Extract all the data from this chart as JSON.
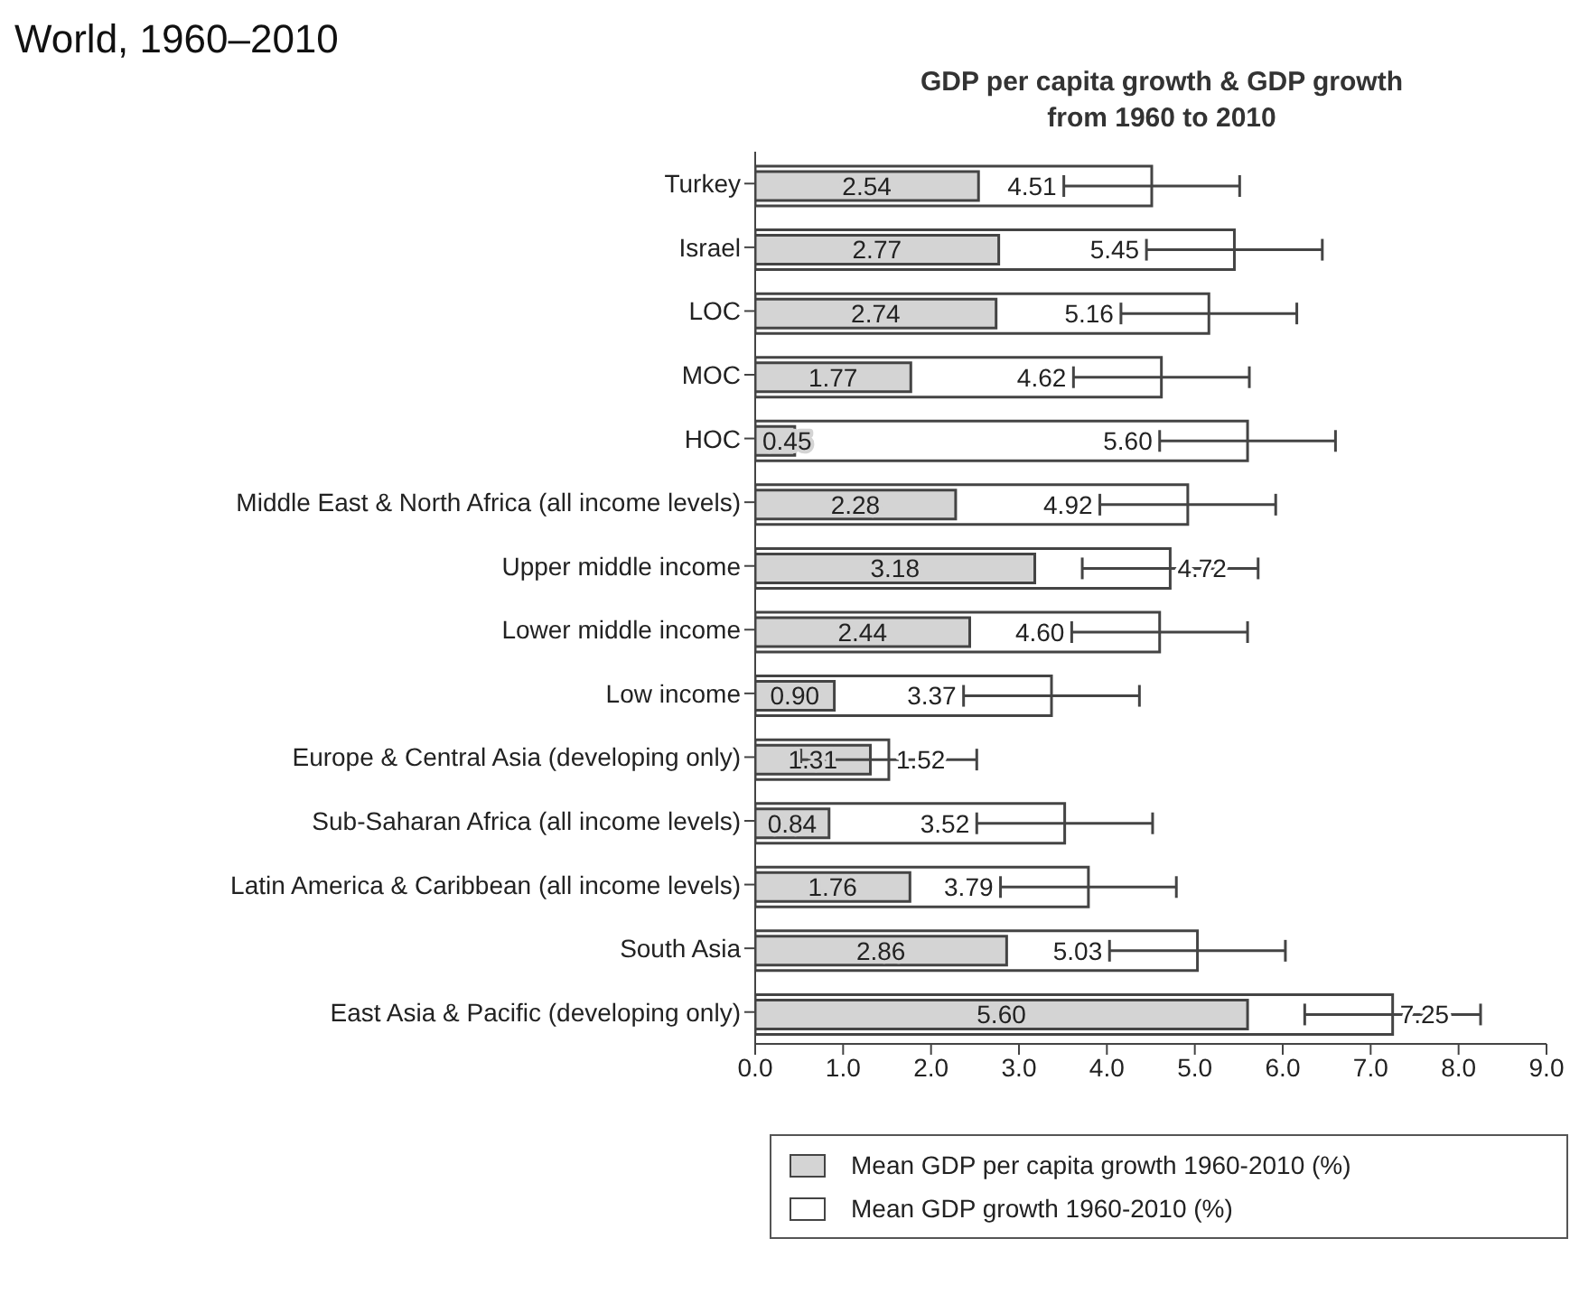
{
  "chart_data": {
    "type": "bar",
    "orientation": "horizontal",
    "title": "GDP per capita growth & GDP growth\nfrom 1960 to 2010",
    "annotations": [
      "World, 1960–2010"
    ],
    "categories": [
      "Turkey",
      "Israel",
      "LOC",
      "MOC",
      "HOC",
      "Middle East & North Africa (all income levels)",
      "Upper middle income",
      "Lower middle income",
      "Low income",
      "Europe & Central Asia (developing only)",
      "Sub-Saharan Africa (all income levels)",
      "Latin America & Caribbean (all income levels)",
      "South Asia",
      "East Asia & Pacific (developing only)"
    ],
    "series": [
      {
        "name": "Mean GDP growth 1960-2010 (%)",
        "color": "#ffffff",
        "values": [
          4.51,
          5.45,
          5.16,
          4.62,
          5.6,
          4.92,
          4.72,
          4.6,
          3.37,
          1.52,
          3.52,
          3.79,
          5.03,
          7.25
        ],
        "value_labels": [
          "4.51",
          "5.45",
          "5.16",
          "4.62",
          "5.60",
          "4.92",
          "4.72",
          "4.60",
          "3.37",
          "1.52",
          "3.52",
          "3.79",
          "5.03",
          "7.25"
        ],
        "errors": [
          1,
          1,
          1,
          1,
          1,
          1,
          1,
          1,
          1,
          1,
          1,
          1,
          1,
          1
        ]
      },
      {
        "name": "Mean GDP per capita growth 1960-2010 (%)",
        "color": "#d4d4d4",
        "values": [
          2.54,
          2.77,
          2.74,
          1.77,
          0.45,
          2.28,
          3.18,
          2.44,
          0.9,
          1.31,
          0.84,
          1.76,
          2.86,
          5.6
        ],
        "value_labels": [
          "2.54",
          "2.77",
          "2.74",
          "1.77",
          "0.45",
          "2.28",
          "3.18",
          "2.44",
          "0.90",
          "1.31",
          "0.84",
          "1.76",
          "2.86",
          "5.60"
        ]
      }
    ],
    "xlim": [
      0,
      9
    ],
    "xticks": [
      {
        "value": 0,
        "label": "0.0"
      },
      {
        "value": 1,
        "label": "1.0"
      },
      {
        "value": 2,
        "label": "2.0"
      },
      {
        "value": 3,
        "label": "3.0"
      },
      {
        "value": 4,
        "label": "4.0"
      },
      {
        "value": 5,
        "label": "5.0"
      },
      {
        "value": 6,
        "label": "6.0"
      },
      {
        "value": 7,
        "label": "7.0"
      },
      {
        "value": 8,
        "label": "8.0"
      },
      {
        "value": 9,
        "label": "9.0"
      }
    ],
    "legend": "bottom"
  }
}
